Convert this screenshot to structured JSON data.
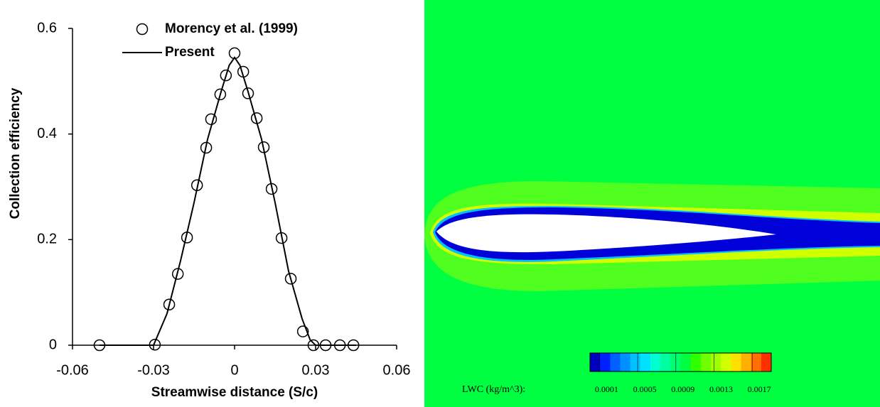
{
  "chart_data": [
    {
      "type": "line",
      "x_label": "Streamwise distance (S/c)",
      "y_label": "Collection efficiency",
      "xlim": [
        -0.06,
        0.06
      ],
      "xticks": [
        -0.06,
        -0.03,
        0,
        0.03,
        0.06
      ],
      "ylim": [
        0,
        0.6
      ],
      "yticks": [
        0,
        0.2,
        0.4,
        0.6
      ],
      "series": [
        {
          "name": "Morency et al. (1999)",
          "style": "markers",
          "color": "#000000",
          "x": [
            -0.05,
            -0.0295,
            -0.0242,
            -0.021,
            -0.0176,
            -0.0139,
            -0.0105,
            -0.0087,
            -0.0053,
            -0.0032,
            0,
            0.0032,
            0.005,
            0.0082,
            0.0108,
            0.0137,
            0.0174,
            0.0208,
            0.0253,
            0.0292,
            0.0337,
            0.039,
            0.044
          ],
          "values": [
            0,
            0.001,
            0.077,
            0.135,
            0.204,
            0.303,
            0.374,
            0.428,
            0.475,
            0.511,
            0.553,
            0.518,
            0.477,
            0.43,
            0.375,
            0.296,
            0.203,
            0.126,
            0.026,
            0,
            0,
            0,
            0
          ]
        },
        {
          "name": "Present",
          "style": "line",
          "color": "#000000",
          "x": [
            -0.05,
            -0.03,
            -0.025,
            -0.02,
            -0.015,
            -0.01,
            -0.005,
            -0.002,
            0,
            0.002,
            0.005,
            0.01,
            0.015,
            0.02,
            0.025,
            0.028,
            0.03,
            0.045
          ],
          "values": [
            0,
            0,
            0.06,
            0.16,
            0.27,
            0.39,
            0.48,
            0.53,
            0.545,
            0.53,
            0.48,
            0.39,
            0.27,
            0.14,
            0.05,
            0.01,
            0,
            0
          ]
        }
      ]
    },
    {
      "type": "contour",
      "colorbar_label": "LWC (kg/m^3):",
      "clim": [
        0,
        0.0019
      ],
      "cticks": [
        0.0001,
        0.0005,
        0.0009,
        0.0013,
        0.0017
      ],
      "colors": [
        "#0000c0",
        "#0020ff",
        "#0060ff",
        "#0090ff",
        "#00c0ff",
        "#00e0ff",
        "#00ffd0",
        "#00ffa0",
        "#00ff70",
        "#00ff40",
        "#30ff00",
        "#70ff00",
        "#a0ff00",
        "#d0ff00",
        "#ffe000",
        "#ffb000",
        "#ff7000",
        "#ff3000"
      ]
    }
  ]
}
